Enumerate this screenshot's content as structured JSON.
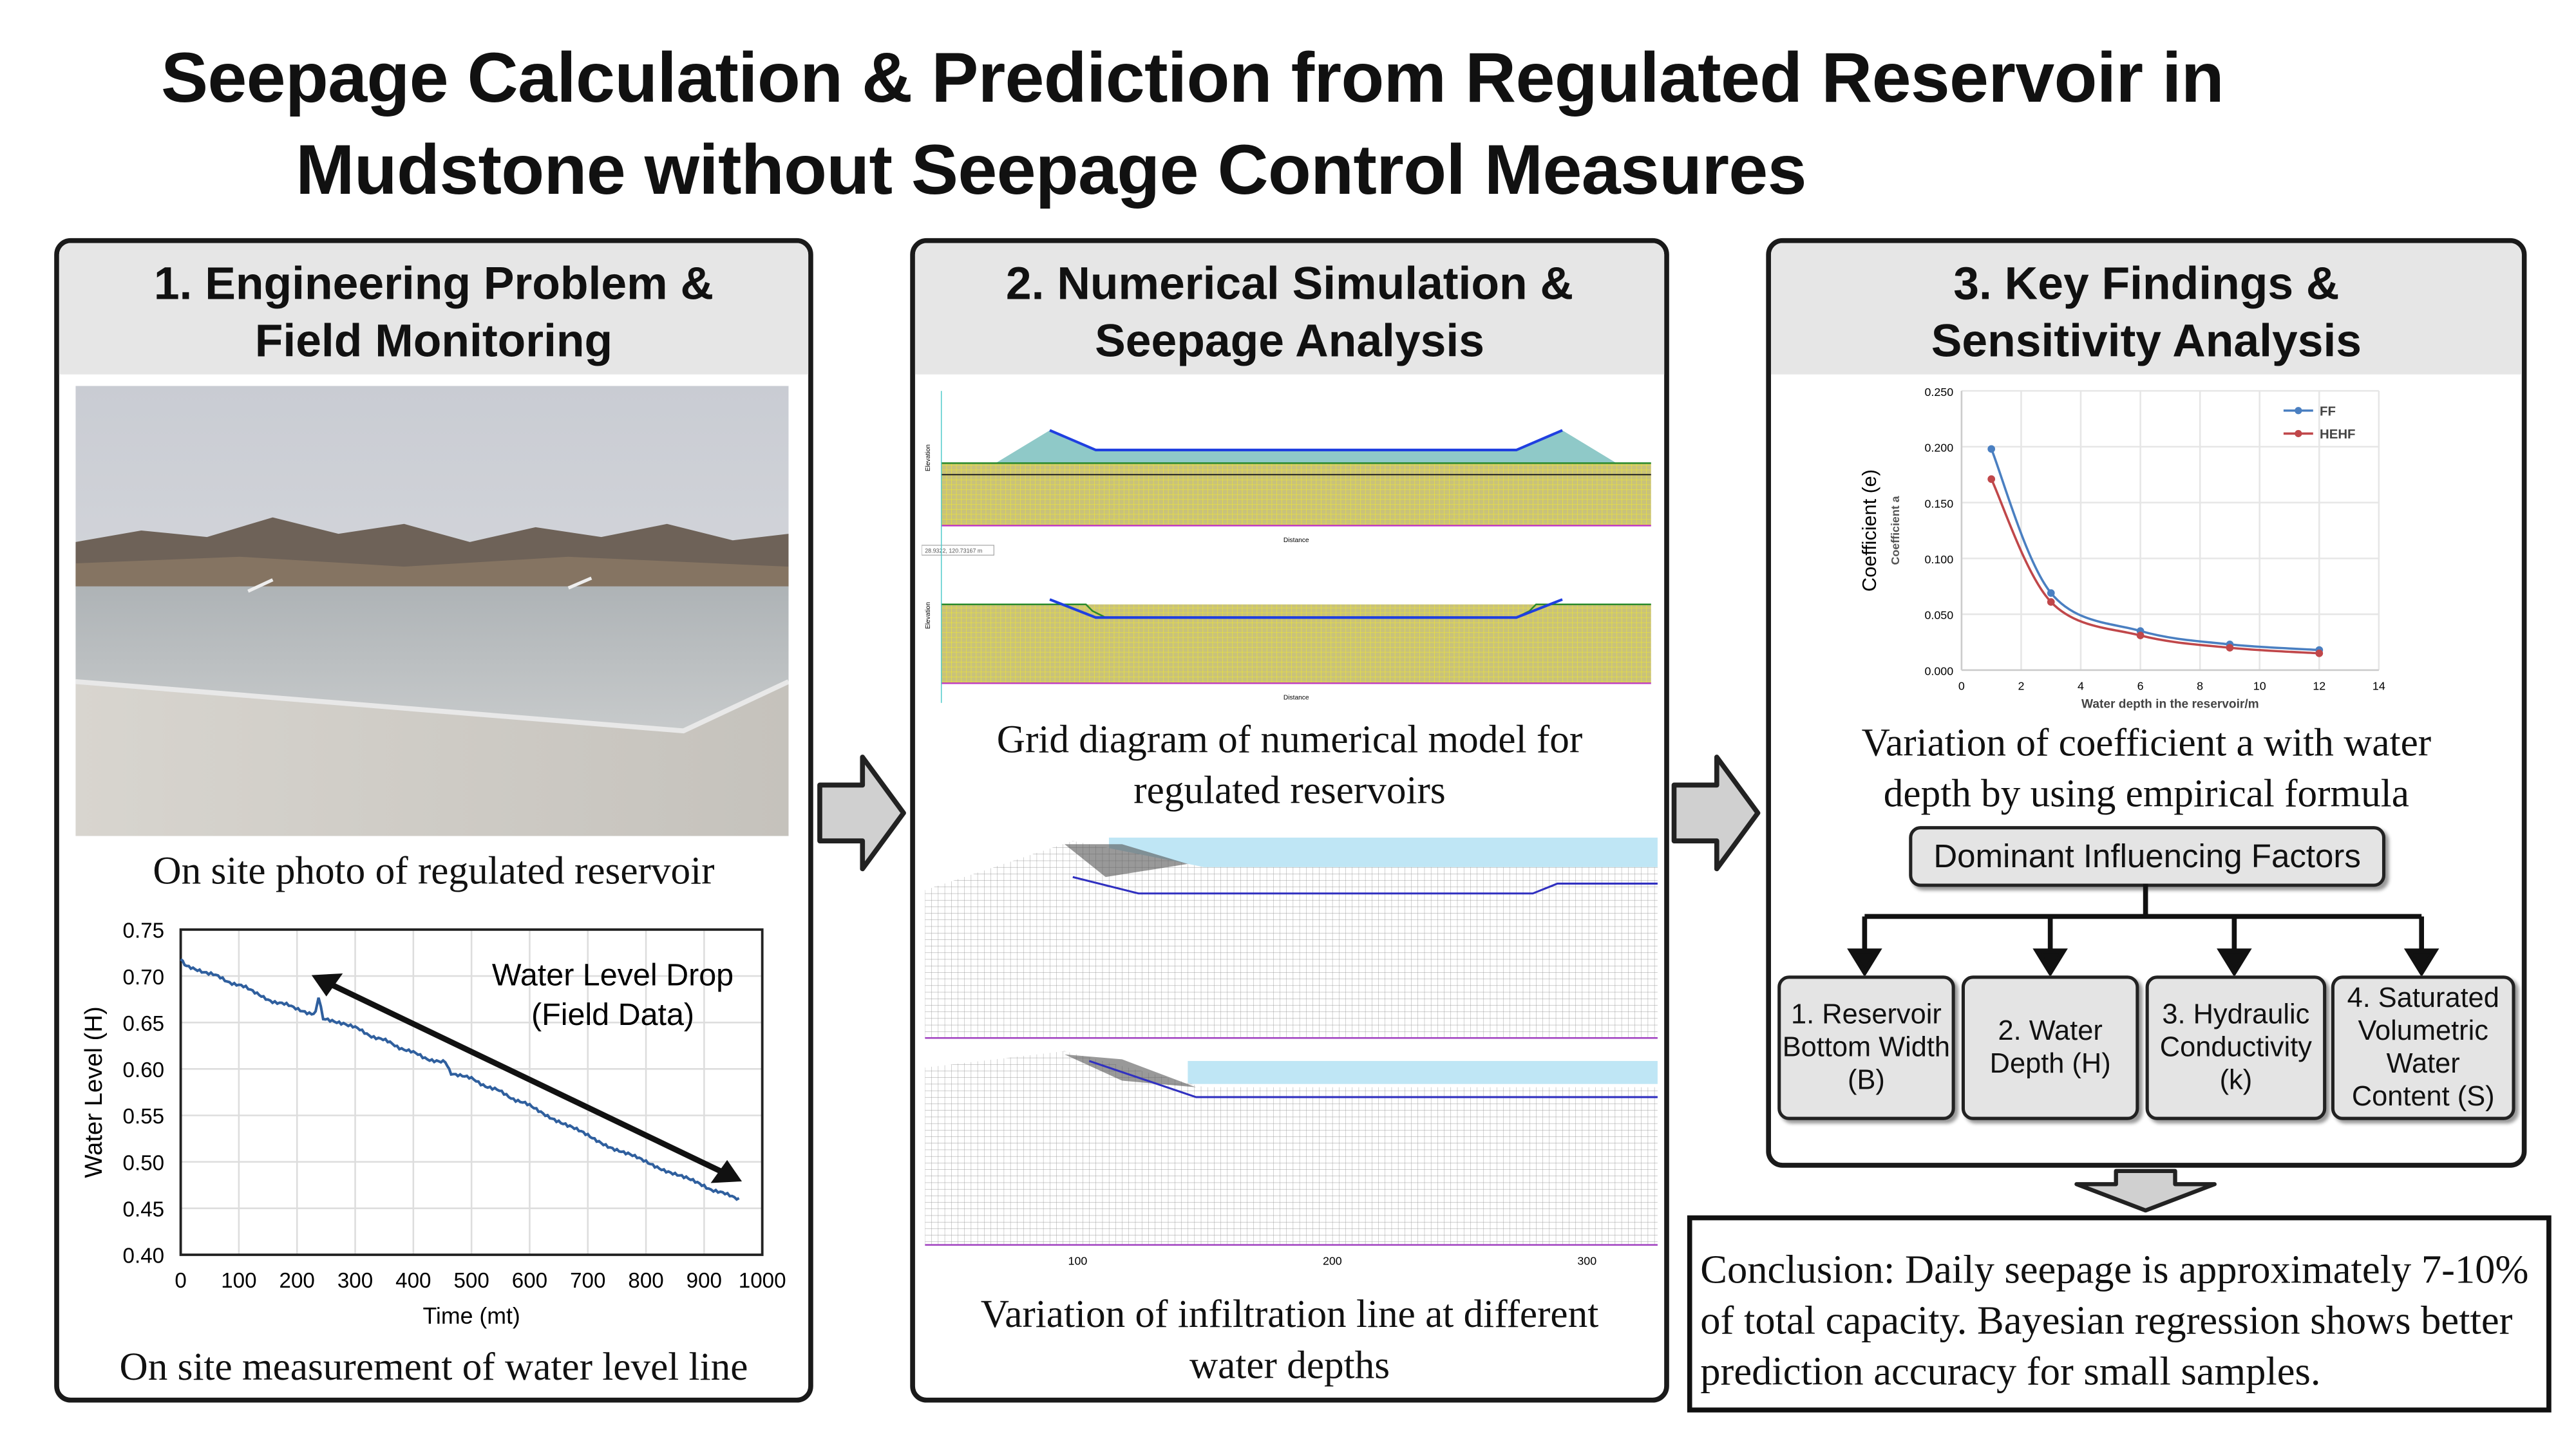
{
  "title": {
    "line1": "Seepage Calculation & Prediction from Regulated Reservoir in",
    "line2": "Mudstone without Seepage Control Measures"
  },
  "panel1": {
    "heading_line1": "1. Engineering Problem &",
    "heading_line2": "Field Monitoring",
    "photo_caption": "On site photo of regulated reservoir",
    "chart_caption": "On site measurement of water level line"
  },
  "panel2": {
    "heading_line1": "2. Numerical Simulation &",
    "heading_line2": "Seepage Analysis",
    "grid_caption_line1": "Grid diagram of numerical model for",
    "grid_caption_line2": "regulated reservoirs",
    "model_axis_y": "Elevation",
    "model_axis_x": "Distance",
    "model_coord_readout": "28.9322, 120.73167 m",
    "mesh_ticks": [
      "100",
      "200",
      "300"
    ],
    "infiltration_caption_line1": "Variation of infiltration line at different",
    "infiltration_caption_line2": "water depths"
  },
  "panel3": {
    "heading_line1": "3. Key Findings &",
    "heading_line2": "Sensitivity Analysis",
    "chart_caption_line1": "Variation of coefficient a with water",
    "chart_caption_line2": "depth by using empirical formula",
    "dominant_label": "Dominant Influencing Factors",
    "factors": [
      {
        "label": "1. Reservoir Bottom Width (B)"
      },
      {
        "label": "2. Water Depth (H)"
      },
      {
        "label": "3. Hydraulic Conductivity (k)"
      },
      {
        "label": "4. Saturated Volumetric Water Content (S)"
      }
    ]
  },
  "conclusion": "Conclusion: Daily seepage is approximately 7-10% of total capacity. Bayesian regression shows better prediction accuracy for small samples.",
  "colors": {
    "series_blue": "#2f5f9e",
    "ff_blue": "#4a7fc1",
    "hehf_red": "#c0474a",
    "panel_header": "#e6e6e6"
  },
  "chart_data": [
    {
      "type": "line",
      "xlabel": "Time (mt)",
      "ylabel": "Water Level (H)",
      "xlim": [
        0,
        1000
      ],
      "ylim": [
        0.4,
        0.75
      ],
      "grid": true,
      "x_ticks": [
        "0",
        "100",
        "200",
        "300",
        "400",
        "500",
        "600",
        "700",
        "800",
        "900",
        "1000"
      ],
      "y_ticks": [
        "0.40",
        "0.45",
        "0.50",
        "0.55",
        "0.60",
        "0.65",
        "0.70",
        "0.75"
      ],
      "annotation": {
        "line1": "Water Level Drop",
        "line2": "(Field Data)"
      },
      "series": [
        {
          "x": [
            0,
            10,
            40,
            80,
            120,
            150,
            190,
            225,
            232,
            237,
            245,
            280,
            320,
            360,
            400,
            440,
            455,
            465,
            500,
            540,
            600,
            650,
            700,
            750,
            800,
            850,
            900,
            940,
            960
          ],
          "y": [
            0.718,
            0.712,
            0.705,
            0.695,
            0.685,
            0.675,
            0.667,
            0.66,
            0.662,
            0.677,
            0.653,
            0.65,
            0.638,
            0.628,
            0.617,
            0.608,
            0.607,
            0.596,
            0.589,
            0.578,
            0.56,
            0.544,
            0.528,
            0.513,
            0.5,
            0.487,
            0.474,
            0.464,
            0.461
          ]
        }
      ]
    },
    {
      "type": "line",
      "xlabel": "Water depth in the reservoir/m",
      "ylabel": "Coefficient (e)",
      "ylabel_secondary": "Coefficient a",
      "xlim": [
        0,
        14
      ],
      "ylim": [
        0,
        0.25
      ],
      "grid": true,
      "legend": "top-right",
      "x_ticks": [
        "0",
        "2",
        "4",
        "6",
        "8",
        "10",
        "12",
        "14"
      ],
      "y_ticks": [
        "0.000",
        "0.050",
        "0.100",
        "0.150",
        "0.200",
        "0.250"
      ],
      "x": [
        1,
        3,
        6,
        9,
        12
      ],
      "series": [
        {
          "name": "FF",
          "values": [
            0.198,
            0.069,
            0.035,
            0.023,
            0.018
          ]
        },
        {
          "name": "HEHF",
          "values": [
            0.171,
            0.061,
            0.031,
            0.02,
            0.015
          ]
        }
      ]
    }
  ]
}
